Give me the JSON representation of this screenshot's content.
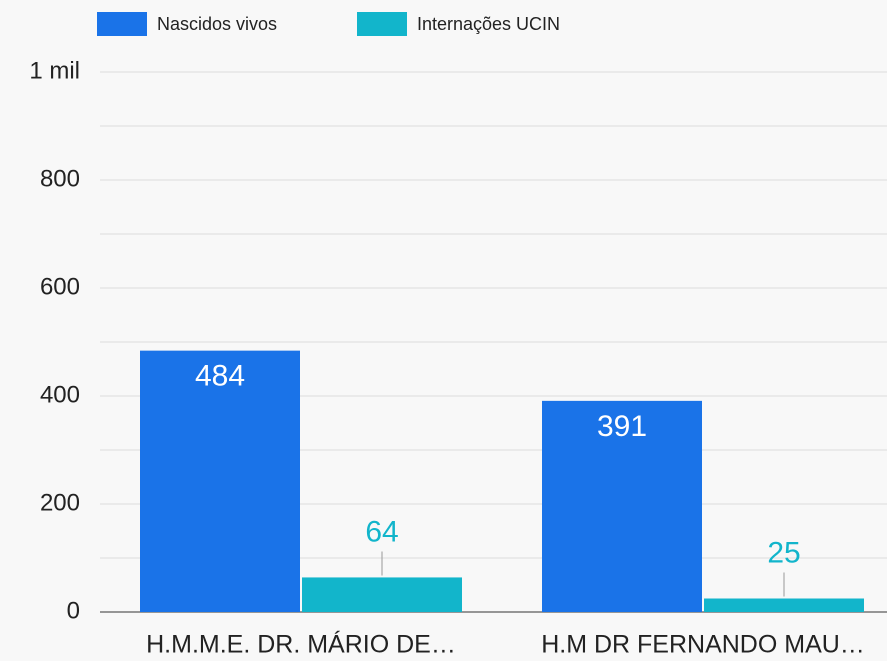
{
  "chart_data": {
    "type": "bar",
    "categories": [
      "H.M.M.E. DR. MÁRIO DE…",
      "H.M DR FERNANDO MAU…"
    ],
    "series": [
      {
        "name": "Nascidos vivos",
        "color": "#1a73e8",
        "values": [
          484,
          391
        ]
      },
      {
        "name": "Internações UCIN",
        "color": "#12b5cb",
        "values": [
          64,
          25
        ]
      }
    ],
    "ylim": [
      0,
      1000
    ],
    "yticks": [
      0,
      200,
      400,
      600,
      800,
      {
        "value": 1000,
        "label": "1 mil"
      }
    ],
    "minor_yticks": [
      100,
      300,
      500,
      700,
      900
    ],
    "grid": true,
    "legend": "top"
  }
}
